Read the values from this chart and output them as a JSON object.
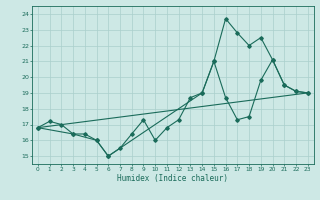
{
  "title": "",
  "xlabel": "Humidex (Indice chaleur)",
  "xlim": [
    -0.5,
    23.5
  ],
  "ylim": [
    14.5,
    24.5
  ],
  "yticks": [
    15,
    16,
    17,
    18,
    19,
    20,
    21,
    22,
    23,
    24
  ],
  "xticks": [
    0,
    1,
    2,
    3,
    4,
    5,
    6,
    7,
    8,
    9,
    10,
    11,
    12,
    13,
    14,
    15,
    16,
    17,
    18,
    19,
    20,
    21,
    22,
    23
  ],
  "bg_color": "#cde8e5",
  "grid_color": "#aacfcc",
  "line_color": "#1a6b5a",
  "line1": {
    "x": [
      0,
      1,
      2,
      3,
      4,
      5,
      6,
      7,
      8,
      9,
      10,
      11,
      12,
      13,
      14,
      15,
      16,
      17,
      18,
      19,
      20,
      21,
      22,
      23
    ],
    "y": [
      16.8,
      17.2,
      17.0,
      16.4,
      16.4,
      16.0,
      15.0,
      15.5,
      16.4,
      17.3,
      16.0,
      16.8,
      17.3,
      18.7,
      19.0,
      21.0,
      18.7,
      17.3,
      17.5,
      19.8,
      21.1,
      19.5,
      19.1,
      19.0
    ]
  },
  "line2": {
    "x": [
      0,
      3,
      5,
      6,
      14,
      15,
      16,
      17,
      18,
      19,
      20,
      21,
      22,
      23
    ],
    "y": [
      16.8,
      16.4,
      16.0,
      15.0,
      19.0,
      21.0,
      23.7,
      22.8,
      22.0,
      22.5,
      21.1,
      19.5,
      19.1,
      19.0
    ]
  },
  "line3": {
    "x": [
      0,
      23
    ],
    "y": [
      16.8,
      19.0
    ]
  }
}
